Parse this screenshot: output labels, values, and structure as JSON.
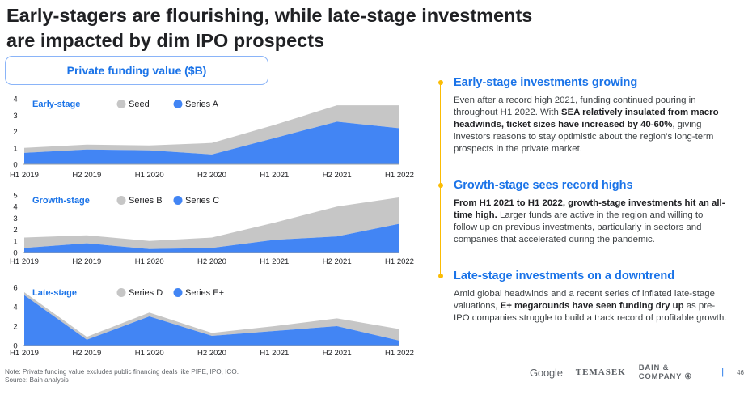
{
  "title_line1": "Early-stagers are flourishing, while late-stage investments",
  "title_line2": "are impacted by dim IPO prospects",
  "funding_box_label": "Private funding value ($B)",
  "colors": {
    "blue": "#4285f4",
    "gray": "#c6c6c6",
    "accent": "#1a73e8",
    "bullet": "#fbbc04"
  },
  "chart_data": [
    {
      "type": "area",
      "title": "Early-stage",
      "x": [
        "H1 2019",
        "H2 2019",
        "H1 2020",
        "H2 2020",
        "H1 2021",
        "H2 2021",
        "H1 2022"
      ],
      "ylim": [
        0,
        4
      ],
      "yticks": [
        0,
        1,
        2,
        3,
        4
      ],
      "stacked": true,
      "legend_position": "top",
      "series": [
        {
          "name": "Series A",
          "color": "#4285f4",
          "values": [
            0.7,
            0.9,
            0.85,
            0.6,
            1.6,
            2.6,
            2.2
          ]
        },
        {
          "name": "Seed",
          "color": "#c6c6c6",
          "values": [
            0.3,
            0.3,
            0.3,
            0.7,
            0.8,
            1.0,
            1.4
          ]
        }
      ]
    },
    {
      "type": "area",
      "title": "Growth-stage",
      "x": [
        "H1 2019",
        "H2 2019",
        "H1 2020",
        "H2 2020",
        "H1 2021",
        "H2 2021",
        "H1 2022"
      ],
      "ylim": [
        0,
        5
      ],
      "yticks": [
        0,
        1,
        2,
        3,
        4,
        5
      ],
      "stacked": true,
      "legend_position": "top",
      "series": [
        {
          "name": "Series C",
          "color": "#4285f4",
          "values": [
            0.4,
            0.8,
            0.3,
            0.4,
            1.1,
            1.4,
            2.5
          ]
        },
        {
          "name": "Series B",
          "color": "#c6c6c6",
          "values": [
            0.9,
            0.7,
            0.7,
            0.9,
            1.5,
            2.6,
            2.3
          ]
        }
      ]
    },
    {
      "type": "area",
      "title": "Late-stage",
      "x": [
        "H1 2019",
        "H2 2019",
        "H1 2020",
        "H2 2020",
        "H1 2021",
        "H2 2021",
        "H1 2022"
      ],
      "ylim": [
        0,
        6
      ],
      "yticks": [
        0,
        2,
        4,
        6
      ],
      "stacked": true,
      "legend_position": "top",
      "series": [
        {
          "name": "Series E+",
          "color": "#4285f4",
          "values": [
            5.2,
            0.6,
            3.0,
            1.0,
            1.5,
            2.0,
            0.5
          ]
        },
        {
          "name": "Series D",
          "color": "#c6c6c6",
          "values": [
            0.3,
            0.3,
            0.4,
            0.3,
            0.5,
            0.8,
            1.2
          ]
        }
      ]
    }
  ],
  "sections": [
    {
      "heading": "Early-stage investments growing",
      "parts": [
        {
          "t": "Even after a record high 2021, funding continued pouring in throughout H1 2022. With ",
          "b": false
        },
        {
          "t": "SEA relatively insulated from macro headwinds, ticket sizes have increased by 40-60%",
          "b": true
        },
        {
          "t": ", giving investors reasons to stay optimistic about the region’s long-term prospects in the private market.",
          "b": false
        }
      ]
    },
    {
      "heading": "Growth-stage sees record highs",
      "parts": [
        {
          "t": "From H1 2021 to H1 2022, growth-stage investments hit an all-time high.",
          "b": true
        },
        {
          "t": " Larger funds are active in the region and willing to follow up on previous investments, particularly in sectors and companies that accelerated during the pandemic.",
          "b": false
        }
      ]
    },
    {
      "heading": "Late-stage investments on a downtrend",
      "parts": [
        {
          "t": "Amid global headwinds and a recent series of inflated late-stage valuations, ",
          "b": false
        },
        {
          "t": "E+ megarounds have seen funding dry up",
          "b": true
        },
        {
          "t": " as pre-IPO companies struggle to build a track record of profitable growth.",
          "b": false
        }
      ]
    }
  ],
  "footnote_line1": "Note: Private funding value excludes public financing deals like PIPE, IPO, ICO.",
  "footnote_line2": "Source: Bain analysis",
  "logo_google": "Google",
  "logo_temasek": "TEMASEK",
  "logo_bain": "BAIN & COMPANY",
  "logo_bain_mark": "④",
  "page_separator": "|",
  "page_number": "46"
}
